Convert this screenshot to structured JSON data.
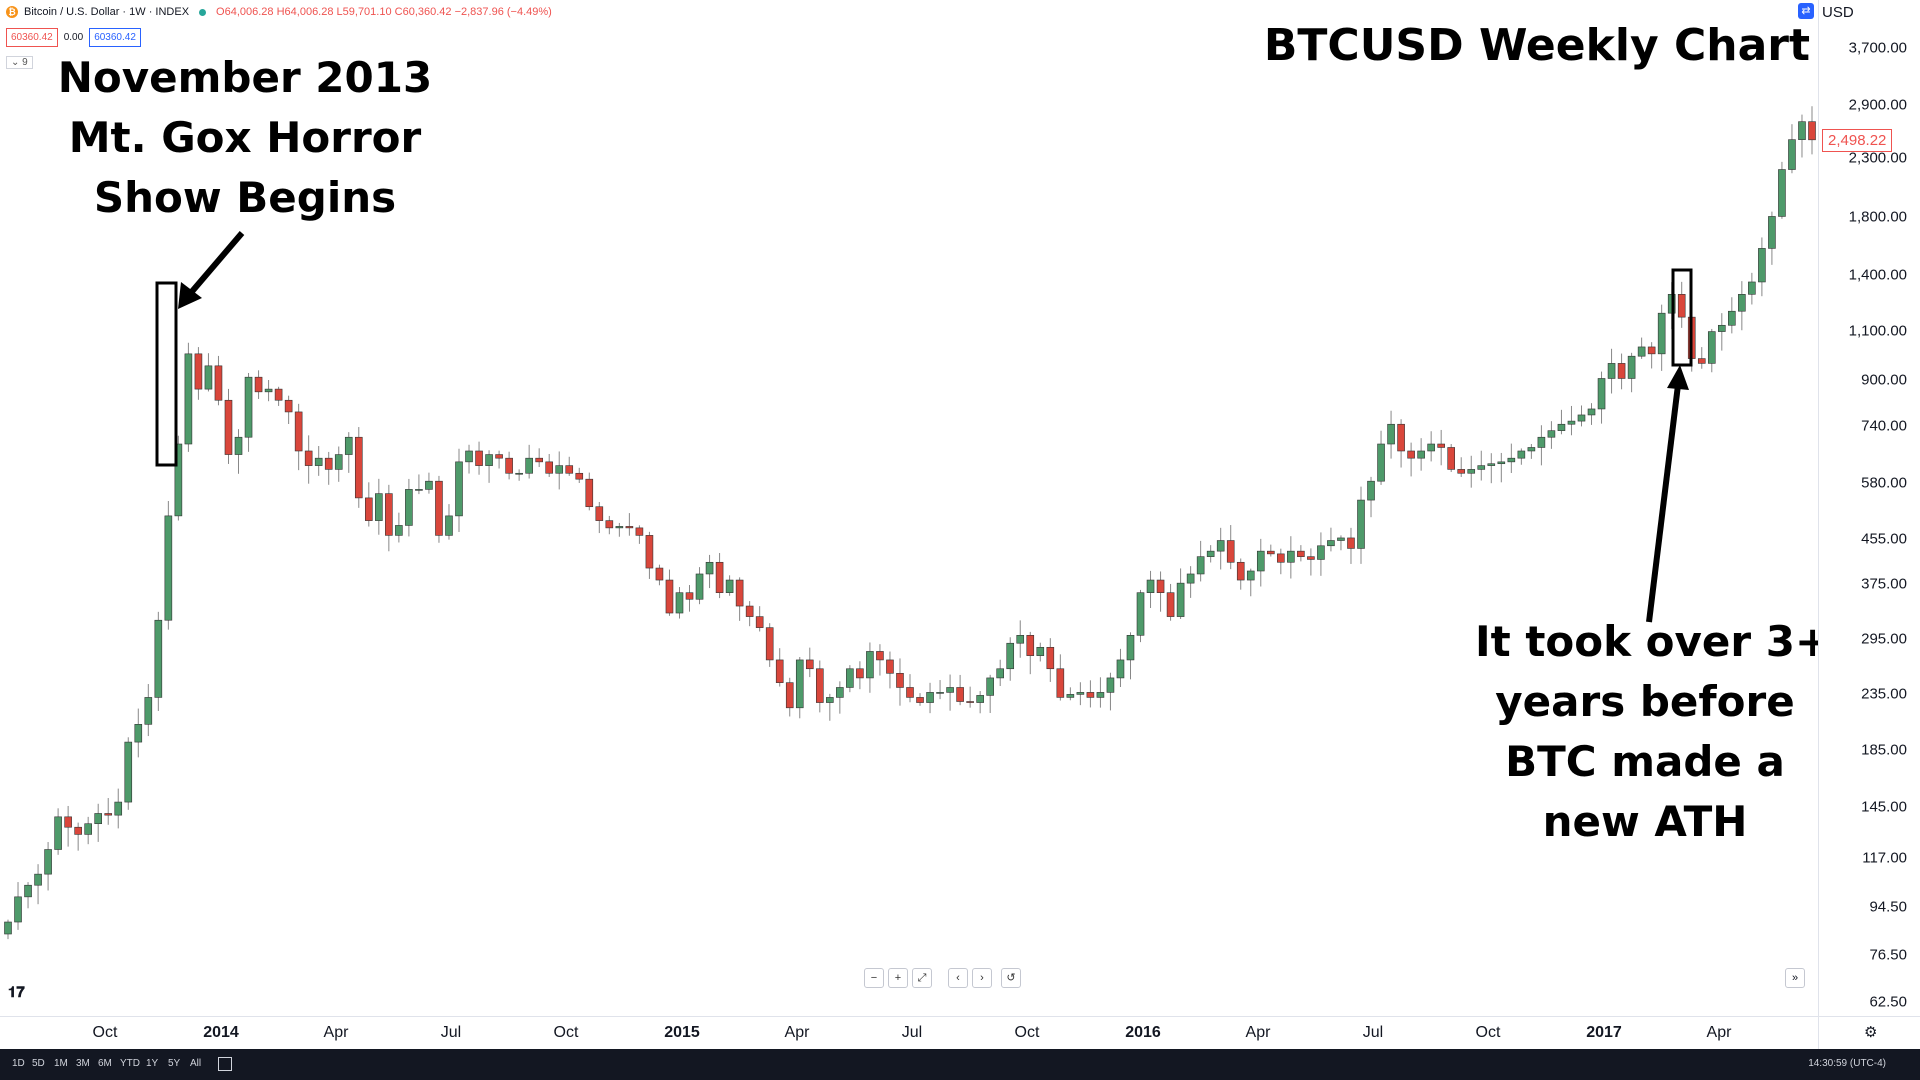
{
  "legend": {
    "symbol": "Bitcoin / U.S. Dollar · 1W · INDEX",
    "ohlc": "O64,006.28 H64,006.28 L59,701.10 C60,360.42 −2,837.96 (−4.49%)"
  },
  "pills": {
    "sell": "60360.42",
    "spread": "0.00",
    "buy": "60360.42"
  },
  "indicator_count": "9",
  "annotations": {
    "title": "BTCUSD Weekly Chart",
    "left": [
      "November 2013",
      "Mt. Gox Horror",
      "Show Begins"
    ],
    "right": [
      "It took over 3+",
      "years before",
      "BTC made a",
      "new ATH"
    ]
  },
  "price_axis": {
    "currency": "USD",
    "ticks": [
      "3,700.00",
      "2,900.00",
      "2,300.00",
      "1,800.00",
      "1,400.00",
      "1,100.00",
      "900.00",
      "740.00",
      "580.00",
      "455.00",
      "375.00",
      "295.00",
      "235.00",
      "185.00",
      "145.00",
      "117.00",
      "94.50",
      "76.50",
      "62.50"
    ],
    "last_price": "2,498.22"
  },
  "time_axis": {
    "ticks": [
      {
        "label": "Oct",
        "major": false
      },
      {
        "label": "2014",
        "major": true
      },
      {
        "label": "Apr",
        "major": false
      },
      {
        "label": "Jul",
        "major": false
      },
      {
        "label": "Oct",
        "major": false
      },
      {
        "label": "2015",
        "major": true
      },
      {
        "label": "Apr",
        "major": false
      },
      {
        "label": "Jul",
        "major": false
      },
      {
        "label": "Oct",
        "major": false
      },
      {
        "label": "2016",
        "major": true
      },
      {
        "label": "Apr",
        "major": false
      },
      {
        "label": "Jul",
        "major": false
      },
      {
        "label": "Oct",
        "major": false
      },
      {
        "label": "2017",
        "major": true
      },
      {
        "label": "Apr",
        "major": false
      }
    ]
  },
  "nav_controls": [
    "−",
    "+",
    "⤢",
    "‹",
    "›",
    "↺"
  ],
  "bottom_bar": {
    "ranges": [
      "1D",
      "5D",
      "1M",
      "3M",
      "6M",
      "YTD",
      "1Y",
      "5Y",
      "All"
    ],
    "clock": "14:30:59 (UTC-4)"
  },
  "colors": {
    "up": "#26a69a",
    "up_fill": "#4e9a6a",
    "down": "#ef5350",
    "down_fill": "#d9463b",
    "wick": "#888888"
  },
  "chart_data": {
    "type": "candlestick",
    "title": "BTCUSD Weekly Chart",
    "x_range": [
      "2013-08",
      "2017-06"
    ],
    "scale": "log",
    "ylim": [
      62.5,
      3700
    ],
    "weekly_close": [
      88,
      98,
      103,
      108,
      120,
      138,
      132,
      128,
      134,
      140,
      139,
      147,
      190,
      205,
      230,
      320,
      500,
      680,
      1000,
      860,
      950,
      820,
      650,
      700,
      905,
      850,
      860,
      820,
      780,
      660,
      620,
      640,
      610,
      650,
      700,
      540,
      490,
      550,
      460,
      480,
      560,
      560,
      580,
      460,
      500,
      630,
      660,
      620,
      650,
      640,
      600,
      600,
      640,
      630,
      600,
      620,
      600,
      585,
      520,
      490,
      475,
      478,
      475,
      460,
      400,
      380,
      330,
      360,
      350,
      390,
      410,
      360,
      380,
      340,
      325,
      310,
      270,
      245,
      220,
      270,
      260,
      225,
      230,
      240,
      260,
      250,
      280,
      270,
      255,
      240,
      230,
      225,
      235,
      235,
      240,
      226,
      225,
      232,
      250,
      260,
      290,
      300,
      275,
      285,
      260,
      230,
      233,
      235,
      230,
      235,
      250,
      270,
      300,
      360,
      380,
      360,
      325,
      375,
      390,
      420,
      430,
      450,
      410,
      380,
      395,
      430,
      425,
      410,
      430,
      420,
      415,
      440,
      450,
      455,
      435,
      535,
      580,
      680,
      740,
      660,
      640,
      660,
      680,
      670,
      610,
      600,
      610,
      620,
      625,
      630,
      640,
      660,
      670,
      700,
      720,
      740,
      750,
      770,
      790,
      900,
      960,
      900,
      990,
      1030,
      1000,
      1190,
      1290,
      1170,
      980,
      960,
      1100,
      1130,
      1200,
      1290,
      1360,
      1570,
      1800,
      2200,
      2500,
      2700,
      2498.22
    ]
  }
}
